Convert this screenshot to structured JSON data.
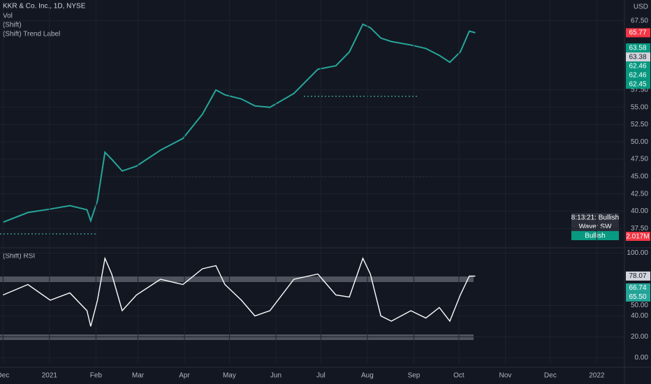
{
  "header": {
    "symbol": "KKR & Co. Inc., 1D, NYSE",
    "indicators": [
      "Vol",
      "(Shift)",
      "(Shift) Trend Label"
    ]
  },
  "trend_box": [
    "8:13:21: Bullish",
    "Wave: SW",
    "Bullish"
  ],
  "volume_label": {
    "value": 2017000,
    "label": "2.017M"
  },
  "chart_data": [
    {
      "type": "line",
      "currency": "USD",
      "color": "#26a69a",
      "x": [
        0,
        16.6,
        31.5,
        44.6,
        56,
        58.5,
        63,
        68,
        72.5,
        79.5,
        89,
        105,
        120,
        133,
        142,
        148,
        159,
        168,
        178,
        194,
        210,
        222,
        231,
        240,
        245,
        252,
        259,
        272,
        282,
        291,
        298,
        305,
        311,
        315
      ],
      "values": [
        38.4,
        39.8,
        40.3,
        40.8,
        40.2,
        38.6,
        41.5,
        48.5,
        47.5,
        45.8,
        46.5,
        48.8,
        50.5,
        54.0,
        57.5,
        56.8,
        56.2,
        55.2,
        55.0,
        57.0,
        60.5,
        61.0,
        63.0,
        67.0,
        66.5,
        65.0,
        64.5,
        64.0,
        63.5,
        62.5,
        61.5,
        63.0,
        66.0,
        65.77
      ],
      "xlim": [
        -2,
        414
      ],
      "ylim": [
        35.2,
        70.5
      ],
      "yticks": [
        {
          "value": 67.5,
          "label": "67.50"
        },
        {
          "value": 57.5,
          "label": "57.50"
        },
        {
          "value": 55,
          "label": "55.00"
        },
        {
          "value": 52.5,
          "label": "52.50"
        },
        {
          "value": 50,
          "label": "50.00"
        },
        {
          "value": 47.5,
          "label": "47.50"
        },
        {
          "value": 45,
          "label": "45.00"
        },
        {
          "value": 42.5,
          "label": "42.50"
        },
        {
          "value": 40,
          "label": "40.00"
        },
        {
          "value": 37.5,
          "label": "37.50"
        }
      ],
      "price_labels": [
        {
          "value": 65.77,
          "color": "#f23645"
        },
        {
          "value": 63.58,
          "color": "#089981"
        },
        {
          "value": 63.38,
          "color": "#d1d4dc"
        },
        {
          "value": 62.46,
          "color": "#089981"
        },
        {
          "value": 62.46,
          "color": "#089981"
        },
        {
          "value": 62.45,
          "color": "#089981"
        }
      ]
    },
    {
      "type": "line",
      "title": "(Shift) RSI",
      "color": "#ffffff",
      "x": [
        0,
        16.6,
        31.5,
        44.6,
        56,
        58.5,
        63,
        68,
        72.5,
        79.5,
        89,
        105,
        120,
        133,
        142,
        148,
        159,
        168,
        178,
        194,
        210,
        222,
        231,
        240,
        245,
        252,
        259,
        272,
        282,
        291,
        298,
        305,
        311,
        315
      ],
      "values": [
        60,
        70,
        55,
        62,
        45,
        30,
        55,
        95,
        80,
        45,
        60,
        75,
        70,
        85,
        88,
        70,
        55,
        40,
        45,
        75,
        80,
        60,
        58,
        95,
        80,
        40,
        35,
        45,
        38,
        48,
        35,
        60,
        78,
        78.07
      ],
      "xlim": [
        -2,
        414
      ],
      "ylim": [
        -5,
        105
      ],
      "yticks": [
        {
          "value": 100,
          "label": "100.00"
        },
        {
          "value": 50,
          "label": "50.00"
        },
        {
          "value": 40,
          "label": "40.00"
        },
        {
          "value": 20,
          "label": "20.00"
        },
        {
          "value": 0,
          "label": "0.00"
        }
      ],
      "xticks": [
        {
          "value": 0,
          "label": "Dec"
        },
        {
          "value": 31,
          "label": "2021"
        },
        {
          "value": 62,
          "label": "Feb"
        },
        {
          "value": 90,
          "label": "Mar"
        },
        {
          "value": 121,
          "label": "Apr"
        },
        {
          "value": 151,
          "label": "May"
        },
        {
          "value": 182,
          "label": "Jun"
        },
        {
          "value": 212,
          "label": "Jul"
        },
        {
          "value": 243,
          "label": "Aug"
        },
        {
          "value": 274,
          "label": "Sep"
        },
        {
          "value": 304,
          "label": "Oct"
        },
        {
          "value": 335,
          "label": "Nov"
        },
        {
          "value": 365,
          "label": "Dec"
        },
        {
          "value": 396,
          "label": "2022"
        }
      ],
      "markers": [
        {
          "value": 78.07,
          "color": "#d1d4dc"
        },
        {
          "value": 66.74,
          "color": "#26a69a"
        },
        {
          "value": 65.5,
          "label": "65.50",
          "color": "#26a69a"
        }
      ]
    }
  ]
}
